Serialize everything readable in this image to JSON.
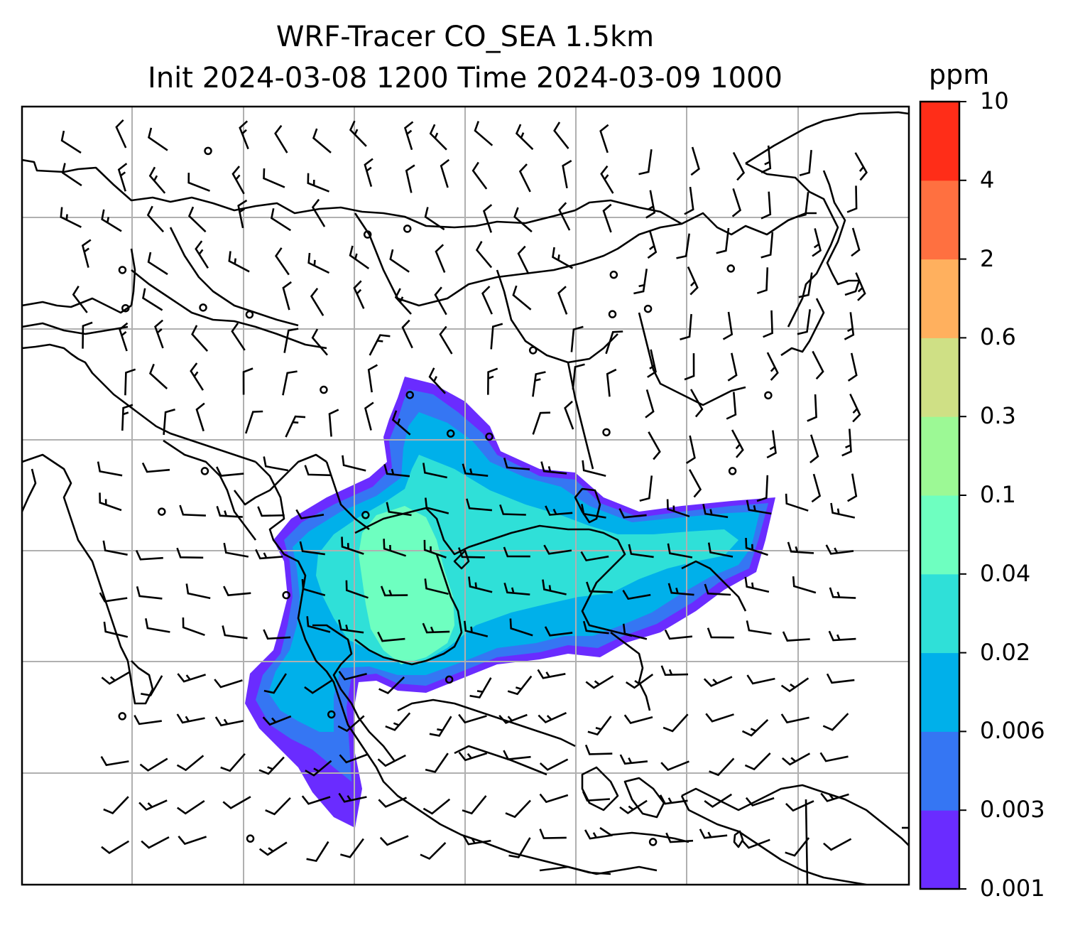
{
  "title": {
    "line1": "WRF-Tracer CO_SEA 1.5km",
    "line2": "Init 2024-03-08 1200 Time 2024-03-09 1000"
  },
  "colorbar": {
    "unit": "ppm",
    "levels": [
      "0.001",
      "0.003",
      "0.006",
      "0.02",
      "0.04",
      "0.1",
      "0.3",
      "0.6",
      "2",
      "4",
      "10"
    ],
    "colors": [
      "#6a2cff",
      "#3576f3",
      "#00b0ea",
      "#2fe0d8",
      "#6effc0",
      "#9cf995",
      "#cfe085",
      "#ffb05e",
      "#ff7040",
      "#ff2d18"
    ]
  },
  "map": {
    "overlay": "wind barbs",
    "lines": [
      "coastlines",
      "country borders",
      "gridlines"
    ],
    "plume_colors": {
      "outer": "#6a2cff",
      "blue": "#3576f3",
      "cyan": "#00b0ea",
      "teal": "#2fe0d8",
      "green": "#6effc0"
    }
  }
}
